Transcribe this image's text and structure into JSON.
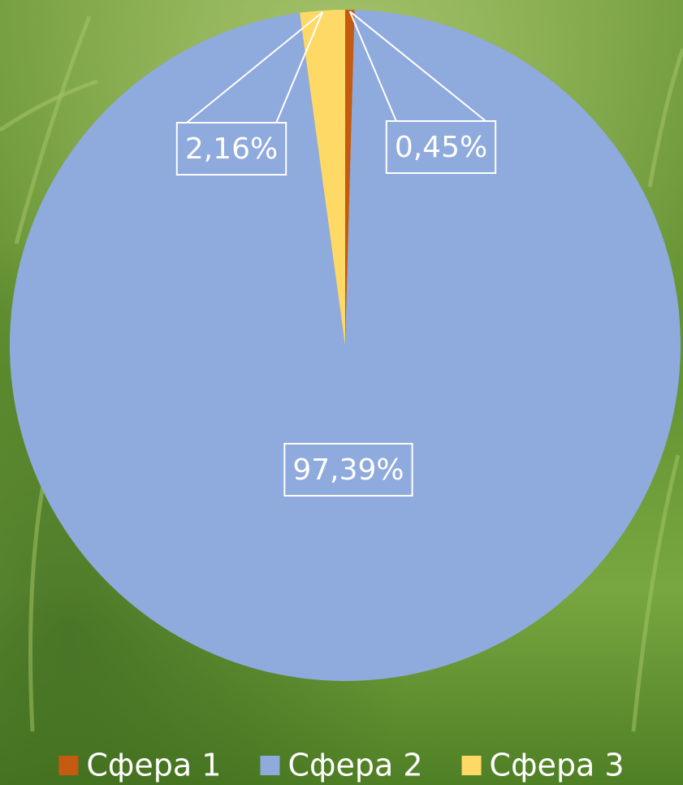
{
  "chart_data": {
    "type": "pie",
    "categories": [
      "Сфера 1",
      "Сфера 2",
      "Сфера 3"
    ],
    "values": [
      0.45,
      97.39,
      2.16
    ],
    "value_labels": [
      "0,45%",
      "97,39%",
      "2,16%"
    ],
    "colors": [
      "#c55a11",
      "#8faadc",
      "#ffd966"
    ],
    "legend": "bottom"
  }
}
